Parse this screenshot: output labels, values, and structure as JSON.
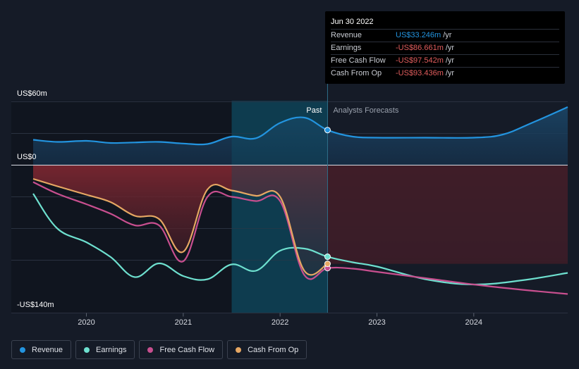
{
  "chart_data": {
    "type": "line",
    "title": "",
    "x_range": [
      2019.45,
      2024.97
    ],
    "ylim": [
      -140,
      60
    ],
    "y_labels": {
      "top": "US$60m",
      "zero": "US$0",
      "bottom": "-US$140m"
    },
    "x_ticks": [
      {
        "value": 2020.0,
        "label": "2020"
      },
      {
        "value": 2021.0,
        "label": "2021"
      },
      {
        "value": 2022.0,
        "label": "2022"
      },
      {
        "value": 2023.0,
        "label": "2023"
      },
      {
        "value": 2024.0,
        "label": "2024"
      }
    ],
    "past_label": "Past",
    "forecast_label": "Analysts Forecasts",
    "past_region_start": 2021.5,
    "divider_x": 2022.49,
    "series": [
      {
        "name": "Revenue",
        "color": "#2394df",
        "fill": "area",
        "points": [
          [
            2019.45,
            24
          ],
          [
            2019.7,
            22
          ],
          [
            2020.0,
            23
          ],
          [
            2020.25,
            21
          ],
          [
            2020.5,
            21.5
          ],
          [
            2020.75,
            22
          ],
          [
            2021.0,
            20.5
          ],
          [
            2021.25,
            20
          ],
          [
            2021.5,
            27
          ],
          [
            2021.75,
            25.5
          ],
          [
            2022.0,
            40
          ],
          [
            2022.25,
            45
          ],
          [
            2022.49,
            33.2
          ],
          [
            2022.75,
            27
          ],
          [
            2023.0,
            26
          ],
          [
            2023.5,
            26
          ],
          [
            2024.0,
            26
          ],
          [
            2024.3,
            29
          ],
          [
            2024.6,
            40
          ],
          [
            2024.97,
            55
          ]
        ]
      },
      {
        "name": "Earnings",
        "color": "#6ee0cf",
        "points": [
          [
            2019.45,
            -27
          ],
          [
            2019.7,
            -60
          ],
          [
            2020.0,
            -73
          ],
          [
            2020.25,
            -87
          ],
          [
            2020.5,
            -106
          ],
          [
            2020.75,
            -93
          ],
          [
            2021.0,
            -105
          ],
          [
            2021.25,
            -108
          ],
          [
            2021.5,
            -94
          ],
          [
            2021.75,
            -100
          ],
          [
            2022.0,
            -81
          ],
          [
            2022.25,
            -79
          ],
          [
            2022.49,
            -86.7
          ],
          [
            2022.75,
            -92
          ],
          [
            2023.0,
            -96
          ],
          [
            2023.5,
            -108
          ],
          [
            2024.0,
            -113
          ],
          [
            2024.5,
            -109
          ],
          [
            2024.97,
            -102
          ]
        ]
      },
      {
        "name": "Free Cash Flow",
        "color": "#c84f8f",
        "points": [
          [
            2019.45,
            -16
          ],
          [
            2019.7,
            -27
          ],
          [
            2020.0,
            -37
          ],
          [
            2020.25,
            -46
          ],
          [
            2020.5,
            -57
          ],
          [
            2020.75,
            -57
          ],
          [
            2021.0,
            -91
          ],
          [
            2021.25,
            -30
          ],
          [
            2021.5,
            -30
          ],
          [
            2021.75,
            -34
          ],
          [
            2022.0,
            -34
          ],
          [
            2022.25,
            -104
          ],
          [
            2022.49,
            -97.5
          ],
          [
            2022.75,
            -98
          ],
          [
            2023.0,
            -101
          ],
          [
            2023.5,
            -107
          ],
          [
            2024.0,
            -113
          ],
          [
            2024.5,
            -118
          ],
          [
            2024.97,
            -122
          ]
        ]
      },
      {
        "name": "Cash From Op",
        "color": "#e6a763",
        "points": [
          [
            2019.45,
            -13
          ],
          [
            2019.7,
            -20
          ],
          [
            2020.0,
            -28
          ],
          [
            2020.25,
            -35
          ],
          [
            2020.5,
            -48
          ],
          [
            2020.75,
            -51
          ],
          [
            2021.0,
            -82
          ],
          [
            2021.25,
            -23
          ],
          [
            2021.5,
            -24
          ],
          [
            2021.75,
            -29
          ],
          [
            2022.0,
            -30
          ],
          [
            2022.25,
            -100
          ],
          [
            2022.49,
            -93.4
          ]
        ]
      }
    ]
  },
  "tooltip": {
    "date": "Jun 30 2022",
    "rows": [
      {
        "label": "Revenue",
        "value": "US$33.246m",
        "unit": "/yr"
      },
      {
        "label": "Earnings",
        "value": "-US$86.661m",
        "unit": "/yr"
      },
      {
        "label": "Free Cash Flow",
        "value": "-US$97.542m",
        "unit": "/yr"
      },
      {
        "label": "Cash From Op",
        "value": "-US$93.436m",
        "unit": "/yr"
      }
    ]
  },
  "legend": [
    {
      "label": "Revenue",
      "color": "#2394df"
    },
    {
      "label": "Earnings",
      "color": "#6ee0cf"
    },
    {
      "label": "Free Cash Flow",
      "color": "#c84f8f"
    },
    {
      "label": "Cash From Op",
      "color": "#e6a763"
    }
  ]
}
